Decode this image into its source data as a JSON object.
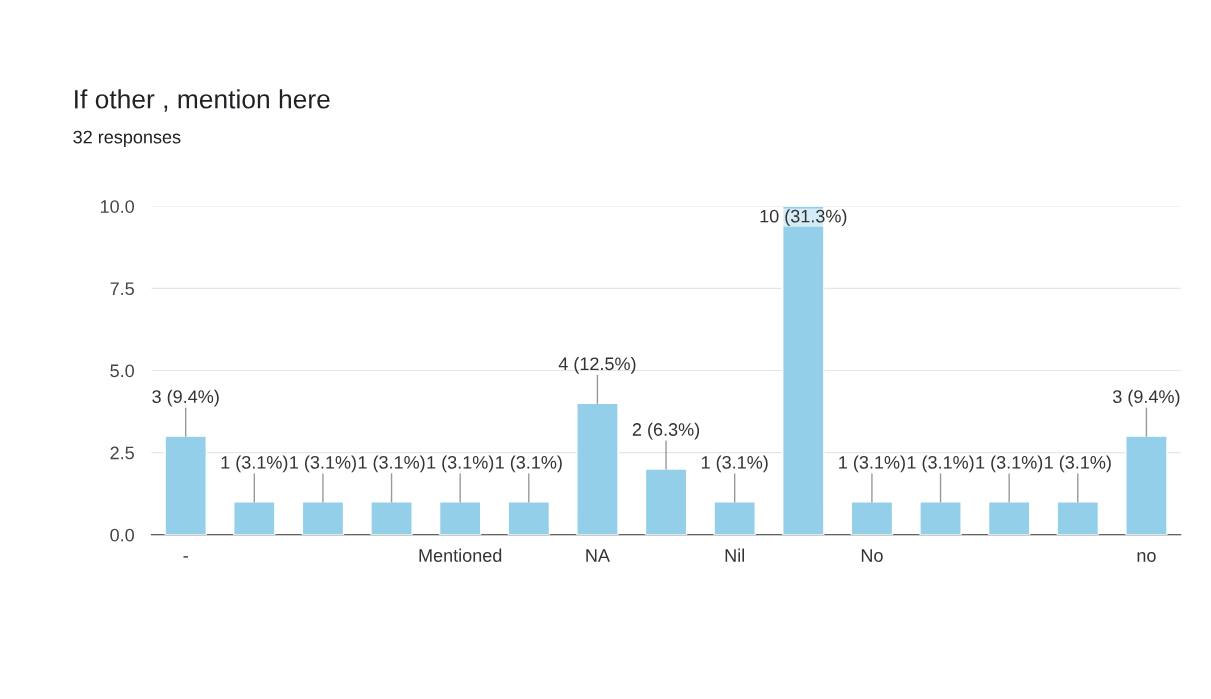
{
  "chart_data": {
    "type": "bar",
    "title": "If other , mention here",
    "subtitle": "32 responses",
    "categories": [
      "-",
      null,
      null,
      null,
      "Mentioned",
      null,
      "NA",
      null,
      "Nil",
      null,
      "No",
      null,
      null,
      null,
      "no"
    ],
    "values": [
      3,
      1,
      1,
      1,
      1,
      1,
      4,
      2,
      1,
      10,
      1,
      1,
      1,
      1,
      3
    ],
    "value_labels": [
      "3 (9.4%)",
      "1 (3.1%)",
      "1 (3.1%)",
      "1 (3.1%)",
      "1 (3.1%)",
      "1 (3.1%)",
      "4 (12.5%)",
      "2 (6.3%)",
      "1 (3.1%)",
      "10 (31.3%)",
      "1 (3.1%)",
      "1 (3.1%)",
      "1 (3.1%)",
      "1 (3.1%)",
      "3 (9.4%)"
    ],
    "color": "#93cfe9",
    "ylim": [
      0,
      10
    ],
    "yticks": [
      {
        "value": 0,
        "label": "0.0"
      },
      {
        "value": 2.5,
        "label": "2.5"
      },
      {
        "value": 5,
        "label": "5.0"
      },
      {
        "value": 7.5,
        "label": "7.5"
      },
      {
        "value": 10,
        "label": "10.0"
      }
    ],
    "grid": "y",
    "legend": false
  }
}
